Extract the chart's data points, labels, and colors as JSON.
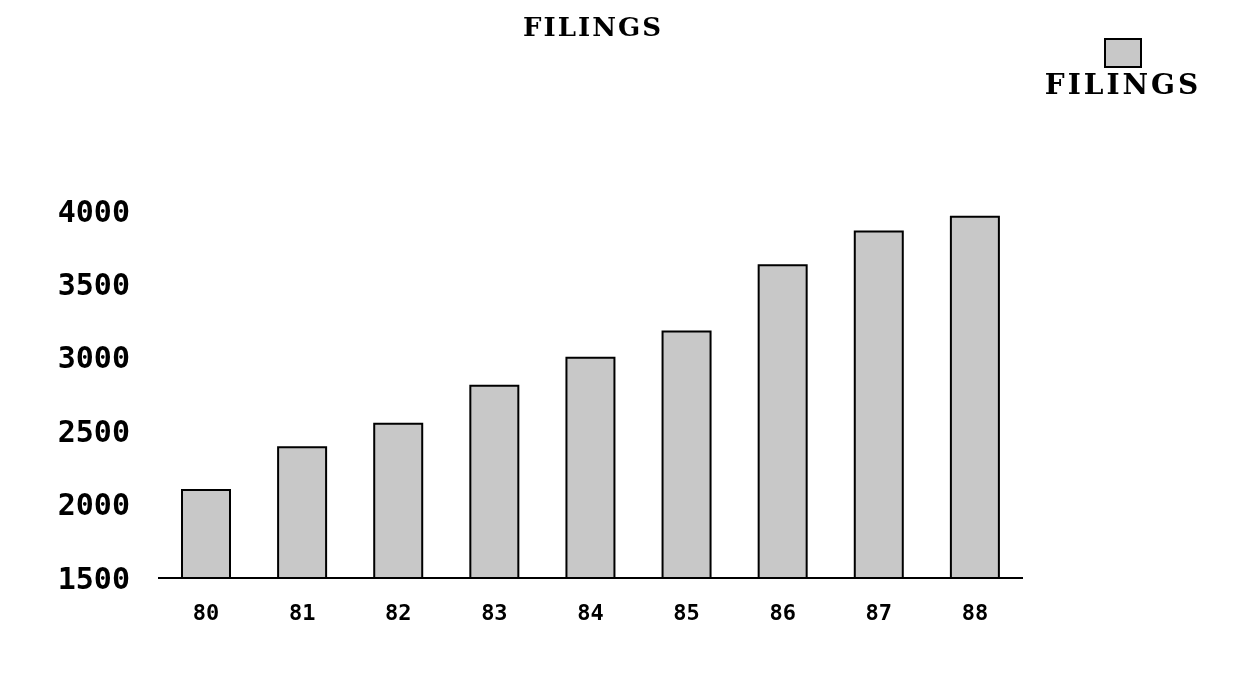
{
  "chart_data": {
    "type": "bar",
    "title": "FILINGS",
    "categories": [
      "80",
      "81",
      "82",
      "83",
      "84",
      "85",
      "86",
      "87",
      "88"
    ],
    "series": [
      {
        "name": "FILINGS",
        "color": "#c8c8c8",
        "values": [
          2100,
          2390,
          2550,
          2810,
          3000,
          3180,
          3630,
          3860,
          3960
        ]
      }
    ],
    "ylim": [
      1500,
      4000
    ],
    "yticks": [
      1500,
      2000,
      2500,
      3000,
      3500,
      4000
    ],
    "grid": false,
    "legend": "top right"
  }
}
